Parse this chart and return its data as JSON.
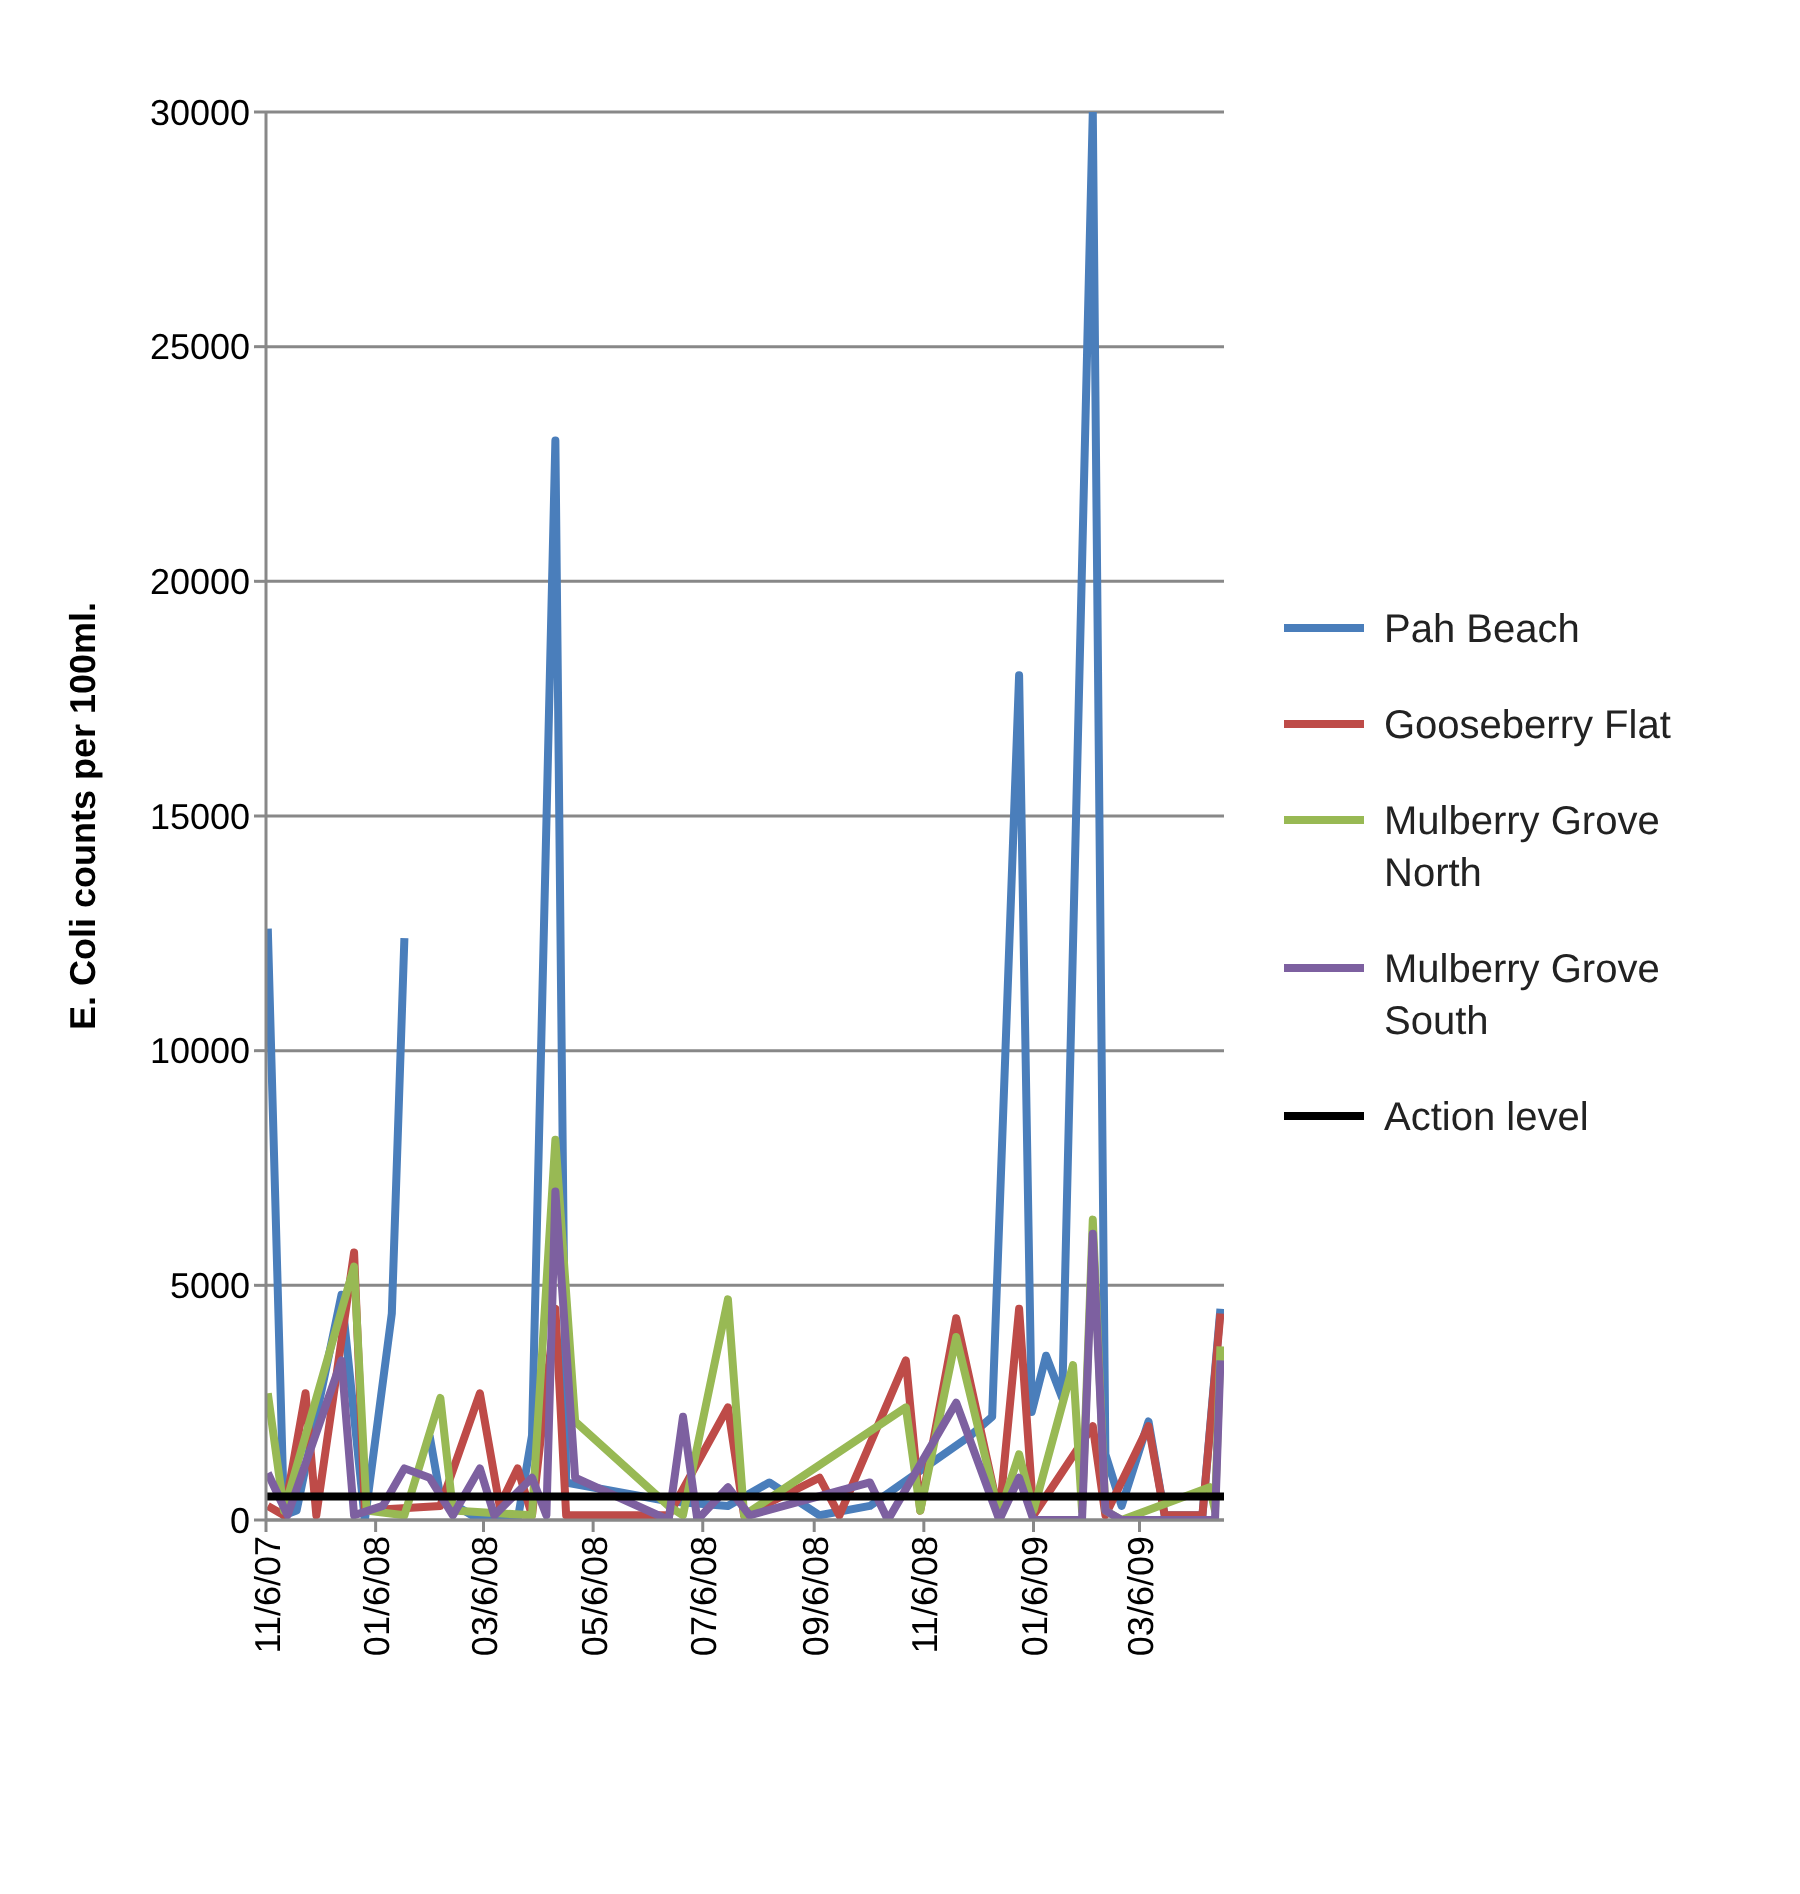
{
  "chart_data": {
    "type": "line",
    "ylabel": "E. Coli counts per 100ml.",
    "xlim": [
      "2007-11-06",
      "2009-04-22"
    ],
    "xticks": [
      {
        "value": "2007-11-06",
        "label": "11/6/07"
      },
      {
        "value": "2008-01-06",
        "label": "01/6/08"
      },
      {
        "value": "2008-03-06",
        "label": "03/6/08"
      },
      {
        "value": "2008-05-06",
        "label": "05/6/08"
      },
      {
        "value": "2008-07-06",
        "label": "07/6/08"
      },
      {
        "value": "2008-09-06",
        "label": "09/6/08"
      },
      {
        "value": "2008-11-06",
        "label": "11/6/08"
      },
      {
        "value": "2009-01-06",
        "label": "01/6/09"
      },
      {
        "value": "2009-03-06",
        "label": "03/6/09"
      }
    ],
    "ylim": [
      0,
      30000
    ],
    "yticks": [
      0,
      5000,
      10000,
      15000,
      20000,
      25000,
      30000
    ],
    "grid": "y",
    "legend": "right",
    "marker": "none",
    "line_style": "solid",
    "series": [
      {
        "name": "Pah Beach",
        "color": "#4a7ebb",
        "x": [
          "2007-11-07",
          "2007-11-16",
          "2007-11-23",
          "2007-12-18",
          "2007-12-31",
          "2008-01-15",
          "2008-01-22",
          "2008-01-29",
          "2008-02-05",
          "2008-02-11",
          "2008-03-04",
          "2008-03-25",
          "2008-04-02",
          "2008-04-15",
          "2008-04-21",
          "2008-06-17",
          "2008-07-20",
          "2008-08-12",
          "2008-09-09",
          "2008-10-07",
          "2008-12-02",
          "2008-12-14",
          "2008-12-29",
          "2009-01-05",
          "2009-01-13",
          "2009-01-22",
          "2009-02-08",
          "2009-02-15",
          "2009-02-24",
          "2009-03-11",
          "2009-03-20",
          "2009-04-10",
          "2009-04-20"
        ],
        "values": [
          12600,
          100,
          200,
          4800,
          0,
          4400,
          12400,
          null,
          1800,
          500,
          0,
          0,
          1800,
          23000,
          800,
          400,
          300,
          800,
          100,
          300,
          1800,
          2200,
          18000,
          2300,
          3500,
          2600,
          30000,
          1400,
          300,
          2100,
          100,
          100,
          4500
        ]
      },
      {
        "name": "Gooseberry Flat",
        "color": "#be4b48",
        "x": [
          "2007-11-07",
          "2007-11-16",
          "2007-11-28",
          "2007-12-04",
          "2007-12-25",
          "2007-12-31",
          "2008-02-11",
          "2008-03-04",
          "2008-03-15",
          "2008-03-25",
          "2008-04-02",
          "2008-04-15",
          "2008-04-21",
          "2008-06-17",
          "2008-07-20",
          "2008-07-29",
          "2008-09-09",
          "2008-09-20",
          "2008-10-27",
          "2008-11-04",
          "2008-11-24",
          "2008-12-18",
          "2008-12-29",
          "2009-01-06",
          "2009-02-08",
          "2009-02-15",
          "2009-03-11",
          "2009-03-20",
          "2009-04-10",
          "2009-04-20"
        ],
        "values": [
          300,
          100,
          2700,
          100,
          5700,
          200,
          300,
          2700,
          300,
          1100,
          100,
          4500,
          100,
          100,
          2400,
          100,
          900,
          100,
          3400,
          200,
          4300,
          100,
          4500,
          100,
          2000,
          100,
          2000,
          100,
          100,
          4400
        ]
      },
      {
        "name": "Mulberry Grove North",
        "color": "#98b954",
        "x": [
          "2007-11-07",
          "2007-11-16",
          "2007-12-25",
          "2008-01-01",
          "2008-01-22",
          "2008-02-11",
          "2008-02-18",
          "2008-04-02",
          "2008-04-15",
          "2008-04-26",
          "2008-06-17",
          "2008-06-25",
          "2008-07-20",
          "2008-07-29",
          "2008-10-27",
          "2008-11-04",
          "2008-11-24",
          "2008-12-18",
          "2008-12-29",
          "2009-01-06",
          "2009-01-28",
          "2009-02-02",
          "2009-02-08",
          "2009-02-15",
          "2009-02-24",
          "2009-04-14",
          "2009-04-17",
          "2009-04-20"
        ],
        "values": [
          2700,
          200,
          5400,
          200,
          100,
          2600,
          200,
          100,
          8100,
          2100,
          300,
          100,
          4700,
          100,
          2400,
          200,
          3900,
          100,
          1400,
          200,
          3300,
          200,
          6400,
          200,
          0,
          700,
          200,
          3700
        ]
      },
      {
        "name": "Mulberry Grove South",
        "color": "#7d60a0",
        "x": [
          "2007-11-07",
          "2007-11-18",
          "2007-12-18",
          "2007-12-25",
          "2008-01-10",
          "2008-01-22",
          "2008-02-05",
          "2008-02-18",
          "2008-03-04",
          "2008-03-12",
          "2008-04-02",
          "2008-04-10",
          "2008-04-15",
          "2008-04-26",
          "2008-06-17",
          "2008-06-25",
          "2008-07-03",
          "2008-07-20",
          "2008-08-01",
          "2008-10-07",
          "2008-10-17",
          "2008-11-24",
          "2008-12-18",
          "2008-12-29",
          "2009-01-06",
          "2009-02-02",
          "2009-02-08",
          "2009-02-15",
          "2009-02-24",
          "2009-04-17",
          "2009-04-20"
        ],
        "values": [
          1000,
          100,
          3400,
          100,
          300,
          1100,
          900,
          100,
          1100,
          100,
          900,
          100,
          7000,
          900,
          0,
          2200,
          0,
          700,
          100,
          800,
          0,
          2500,
          0,
          900,
          0,
          0,
          6100,
          200,
          0,
          0,
          3400
        ]
      },
      {
        "name": "Action level",
        "color": "#000000",
        "x": [
          "2007-11-06",
          "2009-04-22"
        ],
        "values": [
          500,
          500
        ]
      }
    ]
  }
}
